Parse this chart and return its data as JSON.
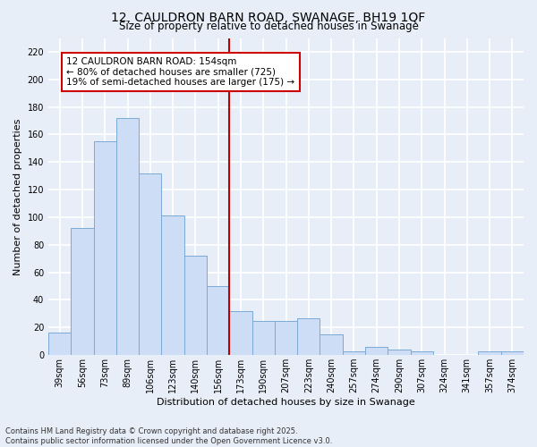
{
  "title_line1": "12, CAULDRON BARN ROAD, SWANAGE, BH19 1QF",
  "title_line2": "Size of property relative to detached houses in Swanage",
  "xlabel": "Distribution of detached houses by size in Swanage",
  "ylabel": "Number of detached properties",
  "categories": [
    "39sqm",
    "56sqm",
    "73sqm",
    "89sqm",
    "106sqm",
    "123sqm",
    "140sqm",
    "156sqm",
    "173sqm",
    "190sqm",
    "207sqm",
    "223sqm",
    "240sqm",
    "257sqm",
    "274sqm",
    "290sqm",
    "307sqm",
    "324sqm",
    "341sqm",
    "357sqm",
    "374sqm"
  ],
  "values": [
    16,
    92,
    155,
    172,
    132,
    101,
    72,
    50,
    32,
    25,
    25,
    27,
    15,
    3,
    6,
    4,
    3,
    0,
    0,
    3,
    3
  ],
  "bar_color": "#ccddf5",
  "bar_edge_color": "#7baad4",
  "vline_x_pos": 7.5,
  "vline_color": "#bb0000",
  "ylim": [
    0,
    230
  ],
  "yticks": [
    0,
    20,
    40,
    60,
    80,
    100,
    120,
    140,
    160,
    180,
    200,
    220
  ],
  "annotation_title": "12 CAULDRON BARN ROAD: 154sqm",
  "annotation_line1": "← 80% of detached houses are smaller (725)",
  "annotation_line2": "19% of semi-detached houses are larger (175) →",
  "annotation_box_edgecolor": "#cc0000",
  "annotation_box_facecolor": "#ffffff",
  "footer_line1": "Contains HM Land Registry data © Crown copyright and database right 2025.",
  "footer_line2": "Contains public sector information licensed under the Open Government Licence v3.0.",
  "fig_facecolor": "#e8eef8",
  "plot_facecolor": "#e8eef8",
  "grid_color": "#ffffff",
  "title_fontsize": 10,
  "subtitle_fontsize": 8.5,
  "tick_fontsize": 7,
  "xlabel_fontsize": 8,
  "ylabel_fontsize": 8,
  "footer_fontsize": 6,
  "annotation_fontsize": 7.5
}
